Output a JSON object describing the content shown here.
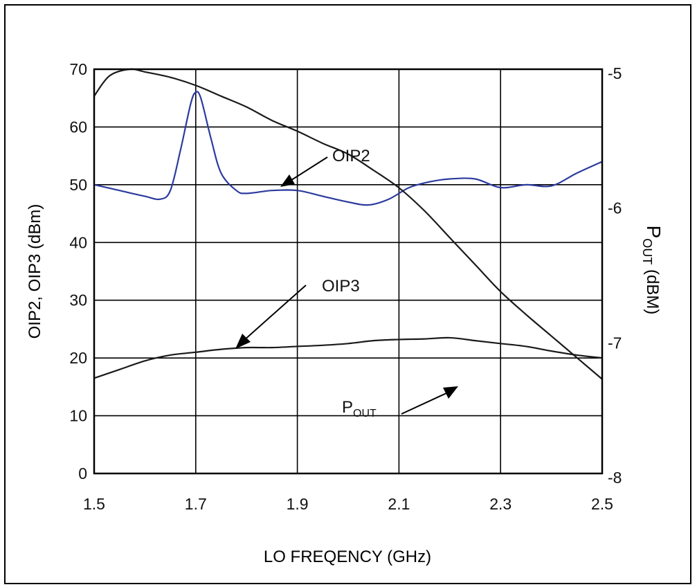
{
  "chart_data": {
    "type": "line",
    "title": "",
    "xlabel": "LO FREQENCY (GHz)",
    "ylabel_left": "OIP2, OIP3 (dBm)",
    "ylabel_right_main": "P",
    "ylabel_right_sub": "OUT",
    "ylabel_right_unit": " (dBM)",
    "xlim": [
      1.5,
      2.5
    ],
    "ylim_left": [
      0,
      70
    ],
    "ylim_right": [
      -8,
      -5
    ],
    "grid": true,
    "x_ticks": [
      "1.5",
      "1.7",
      "1.9",
      "2.1",
      "2.3",
      "2.5"
    ],
    "y_left_ticks": [
      "0",
      "10",
      "20",
      "30",
      "40",
      "50",
      "60",
      "70"
    ],
    "y_right_ticks": [
      "-8",
      "-7",
      "-6",
      "-5"
    ],
    "series": [
      {
        "name": "OIP2",
        "axis": "left",
        "color": "#2b3a9e",
        "x": [
          1.5,
          1.55,
          1.6,
          1.63,
          1.65,
          1.67,
          1.69,
          1.7,
          1.71,
          1.73,
          1.75,
          1.78,
          1.8,
          1.85,
          1.9,
          1.95,
          2.0,
          2.04,
          2.08,
          2.12,
          2.16,
          2.2,
          2.25,
          2.3,
          2.35,
          2.4,
          2.45,
          2.5
        ],
        "y": [
          50,
          49,
          48,
          47.5,
          49,
          56,
          64,
          66,
          65,
          58,
          52,
          49,
          48.5,
          49,
          49,
          48,
          47,
          46.5,
          47.5,
          49.5,
          50.5,
          51,
          51,
          49.5,
          50,
          49.8,
          52,
          54
        ]
      },
      {
        "name": "OIP3",
        "axis": "left",
        "color": "#1a1a1a",
        "x": [
          1.5,
          1.55,
          1.6,
          1.65,
          1.7,
          1.75,
          1.8,
          1.85,
          1.9,
          1.95,
          2.0,
          2.05,
          2.1,
          2.15,
          2.2,
          2.25,
          2.3,
          2.35,
          2.4,
          2.45,
          2.5
        ],
        "y": [
          16.5,
          18,
          19.5,
          20.5,
          21,
          21.5,
          21.8,
          21.8,
          22,
          22.2,
          22.5,
          23,
          23.2,
          23.3,
          23.5,
          23,
          22.5,
          22,
          21.2,
          20.5,
          20
        ]
      },
      {
        "name": "POUT",
        "axis": "right",
        "color": "#1a1a1a",
        "x": [
          1.5,
          1.53,
          1.57,
          1.6,
          1.65,
          1.7,
          1.75,
          1.8,
          1.85,
          1.9,
          1.95,
          2.0,
          2.05,
          2.1,
          2.15,
          2.2,
          2.25,
          2.3,
          2.35,
          2.4,
          2.45,
          2.5
        ],
        "y": [
          -5.2,
          -5.05,
          -5.0,
          -5.02,
          -5.06,
          -5.12,
          -5.2,
          -5.28,
          -5.38,
          -5.46,
          -5.55,
          -5.63,
          -5.75,
          -5.88,
          -6.05,
          -6.25,
          -6.45,
          -6.65,
          -6.82,
          -6.98,
          -7.14,
          -7.3
        ]
      }
    ],
    "annotations": [
      {
        "label": "OIP2",
        "series": "OIP2"
      },
      {
        "label": "OIP3",
        "series": "OIP3"
      },
      {
        "label_main": "P",
        "label_sub": "OUT",
        "series": "POUT"
      }
    ]
  }
}
